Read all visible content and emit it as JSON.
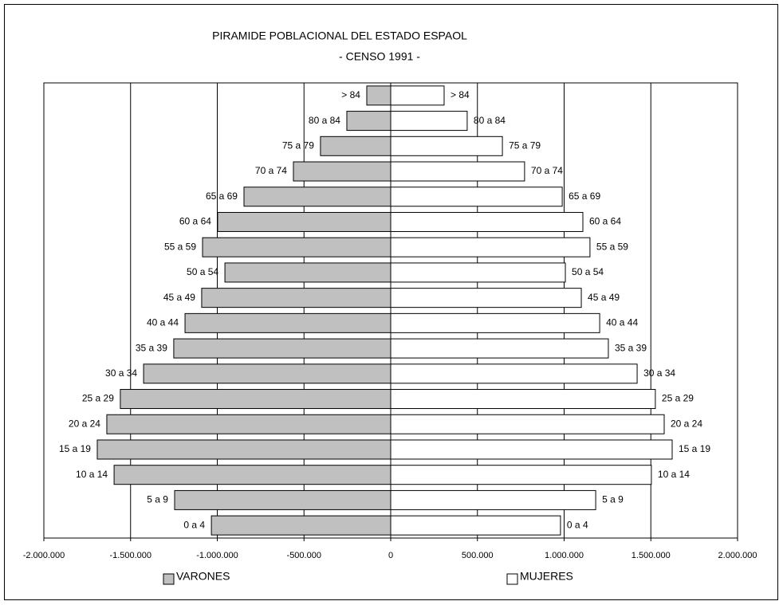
{
  "chart_data": {
    "type": "population-pyramid",
    "title": "PIRAMIDE POBLACIONAL DEL ESTADO ESPAOL",
    "subtitle": "- CENSO 1991 -",
    "categories": [
      "0 a 4",
      "5 a 9",
      "10 a 14",
      "15 a 19",
      "20 a 24",
      "25 a 29",
      "30 a 34",
      "35 a 39",
      "40 a 44",
      "45 a 49",
      "50 a 54",
      "55 a 59",
      "60 a 64",
      "65 a 69",
      "70 a 74",
      "75 a 79",
      "80 a 84",
      "> 84"
    ],
    "series": [
      {
        "name": "VARONES",
        "color": "#c0c0c0",
        "values": [
          -1034000,
          -1246000,
          -1595000,
          -1692000,
          -1637000,
          -1559000,
          -1425000,
          -1251000,
          -1186000,
          -1090000,
          -956000,
          -1085000,
          -998000,
          -846000,
          -561000,
          -405000,
          -253000,
          -138000
        ]
      },
      {
        "name": "MUJERES",
        "color": "#ffffff",
        "values": [
          979000,
          1182000,
          1503000,
          1623000,
          1577000,
          1526000,
          1421000,
          1255000,
          1205000,
          1099000,
          1007000,
          1149000,
          1108000,
          989000,
          772000,
          644000,
          441000,
          308000
        ]
      }
    ],
    "xlim": [
      -2000000,
      2000000
    ],
    "xticks": [
      {
        "value": -2000000,
        "label": "-2.000.000"
      },
      {
        "value": -1500000,
        "label": "-1.500.000"
      },
      {
        "value": -1000000,
        "label": "-1.000.000"
      },
      {
        "value": -500000,
        "label": "-500.000"
      },
      0,
      {
        "value": 500000,
        "label": "500.000"
      },
      {
        "value": 1000000,
        "label": "1.000.000"
      },
      {
        "value": 1500000,
        "label": "1.500.000"
      },
      {
        "value": 2000000,
        "label": "2.000.000"
      }
    ],
    "grid": true
  }
}
